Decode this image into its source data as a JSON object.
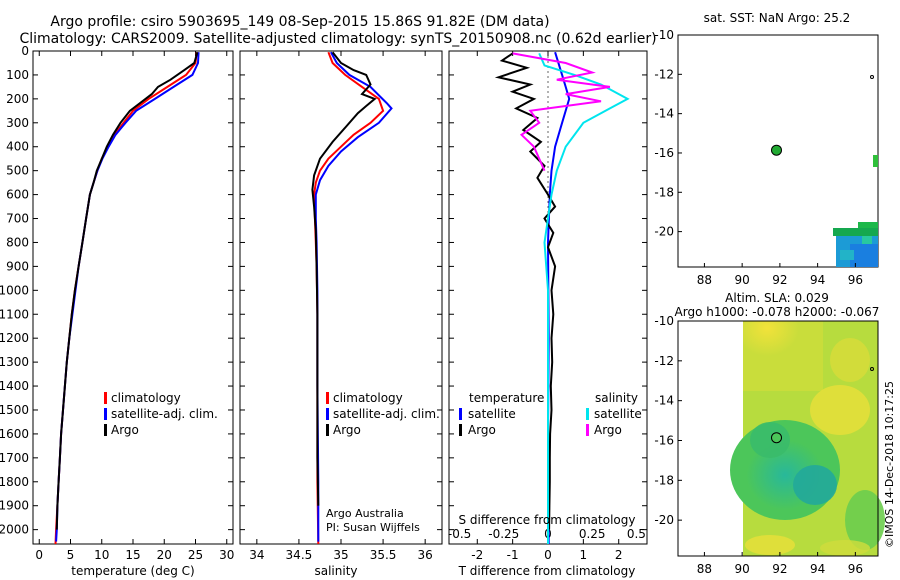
{
  "title": {
    "line1": "Argo profile: csiro 5903695_149 08-Sep-2015 15.86S 91.82E (DM data)",
    "line2": "Climatology: CARS2009. Satellite-adjusted climatology: synTS_20150908.nc (0.62d earlier)"
  },
  "colors": {
    "climatology": "#ff0000",
    "satellite": "#0000ff",
    "argo": "#000000",
    "sat_salinity": "#00e5ee",
    "argo_salinity_diff": "#ff00ff"
  },
  "chart_data": [
    {
      "type": "line",
      "name": "temperature",
      "xlabel": "temperature (deg C)",
      "ylabel": "",
      "xlim": [
        -1,
        31
      ],
      "ylim": [
        2060,
        0
      ],
      "xticks": [
        "0",
        "5",
        "10",
        "15",
        "20",
        "25",
        "30"
      ],
      "yticks": [
        "0",
        "100",
        "200",
        "300",
        "400",
        "500",
        "600",
        "700",
        "800",
        "900",
        "1000",
        "1100",
        "1200",
        "1300",
        "1400",
        "1500",
        "1600",
        "1700",
        "1800",
        "1900",
        "2000"
      ],
      "legend": {
        "position": "lower-right",
        "entries": [
          "climatology",
          "satellite-adj. clim.",
          "Argo"
        ]
      },
      "series": [
        {
          "name": "climatology",
          "color": "#ff0000",
          "points": [
            [
              25.2,
              5
            ],
            [
              25.0,
              50
            ],
            [
              23.5,
              100
            ],
            [
              20.5,
              150
            ],
            [
              17.5,
              200
            ],
            [
              15.0,
              250
            ],
            [
              13.5,
              300
            ],
            [
              12.0,
              350
            ],
            [
              11.0,
              400
            ],
            [
              10.0,
              450
            ],
            [
              9.3,
              500
            ],
            [
              8.7,
              550
            ],
            [
              8.1,
              600
            ],
            [
              7.5,
              700
            ],
            [
              6.9,
              800
            ],
            [
              6.3,
              900
            ],
            [
              5.7,
              1000
            ],
            [
              5.2,
              1100
            ],
            [
              4.8,
              1200
            ],
            [
              4.4,
              1300
            ],
            [
              4.1,
              1400
            ],
            [
              3.8,
              1500
            ],
            [
              3.5,
              1600
            ],
            [
              3.3,
              1700
            ],
            [
              3.1,
              1800
            ],
            [
              2.9,
              1900
            ],
            [
              2.7,
              2000
            ],
            [
              2.6,
              2060
            ]
          ]
        },
        {
          "name": "satellite-adj. clim.",
          "color": "#0000ff",
          "points": [
            [
              25.5,
              5
            ],
            [
              25.4,
              50
            ],
            [
              24.5,
              100
            ],
            [
              21.5,
              150
            ],
            [
              18.5,
              200
            ],
            [
              15.5,
              250
            ],
            [
              13.8,
              300
            ],
            [
              12.2,
              350
            ],
            [
              11.1,
              400
            ],
            [
              10.1,
              450
            ],
            [
              9.3,
              500
            ],
            [
              8.7,
              550
            ],
            [
              8.1,
              600
            ],
            [
              7.5,
              700
            ],
            [
              6.9,
              800
            ],
            [
              6.3,
              900
            ],
            [
              5.8,
              1000
            ],
            [
              5.3,
              1100
            ],
            [
              4.8,
              1200
            ],
            [
              4.4,
              1300
            ],
            [
              4.1,
              1400
            ],
            [
              3.8,
              1500
            ],
            [
              3.5,
              1600
            ],
            [
              3.3,
              1700
            ],
            [
              3.1,
              1800
            ],
            [
              2.9,
              1900
            ],
            [
              2.8,
              2000
            ],
            [
              2.7,
              2050
            ]
          ]
        },
        {
          "name": "Argo",
          "color": "#000000",
          "points": [
            [
              25.3,
              5
            ],
            [
              24.8,
              50
            ],
            [
              23.2,
              80
            ],
            [
              21.0,
              120
            ],
            [
              19.0,
              150
            ],
            [
              18.0,
              180
            ],
            [
              16.5,
              210
            ],
            [
              14.5,
              250
            ],
            [
              13.0,
              300
            ],
            [
              11.8,
              350
            ],
            [
              10.8,
              400
            ],
            [
              10.0,
              450
            ],
            [
              9.2,
              500
            ],
            [
              8.7,
              550
            ],
            [
              8.1,
              600
            ],
            [
              7.5,
              700
            ],
            [
              6.9,
              800
            ],
            [
              6.3,
              900
            ],
            [
              5.7,
              1000
            ],
            [
              5.2,
              1100
            ],
            [
              4.8,
              1200
            ],
            [
              4.4,
              1300
            ],
            [
              4.1,
              1400
            ],
            [
              3.8,
              1500
            ],
            [
              3.5,
              1600
            ],
            [
              3.3,
              1700
            ],
            [
              3.1,
              1800
            ],
            [
              2.9,
              1900
            ],
            [
              2.8,
              2000
            ]
          ]
        }
      ]
    },
    {
      "type": "line",
      "name": "salinity",
      "xlabel": "salinity",
      "xlim": [
        33.8,
        36.2
      ],
      "ylim": [
        2060,
        0
      ],
      "xticks": [
        "34",
        "34.5",
        "35",
        "35.5",
        "36"
      ],
      "legend": {
        "position": "lower-right",
        "entries": [
          "climatology",
          "satellite-adj. clim.",
          "Argo"
        ]
      },
      "series": [
        {
          "name": "climatology",
          "color": "#ff0000",
          "points": [
            [
              34.85,
              5
            ],
            [
              34.9,
              50
            ],
            [
              35.05,
              100
            ],
            [
              35.25,
              150
            ],
            [
              35.45,
              200
            ],
            [
              35.5,
              250
            ],
            [
              35.35,
              300
            ],
            [
              35.15,
              350
            ],
            [
              35.0,
              400
            ],
            [
              34.85,
              450
            ],
            [
              34.75,
              500
            ],
            [
              34.7,
              550
            ],
            [
              34.68,
              600
            ],
            [
              34.69,
              700
            ],
            [
              34.7,
              800
            ],
            [
              34.71,
              900
            ],
            [
              34.72,
              1100
            ],
            [
              34.72,
              1400
            ],
            [
              34.72,
              1800
            ],
            [
              34.73,
              2060
            ]
          ]
        },
        {
          "name": "satellite-adj. clim.",
          "color": "#0000ff",
          "points": [
            [
              34.88,
              5
            ],
            [
              34.95,
              50
            ],
            [
              35.1,
              100
            ],
            [
              35.35,
              150
            ],
            [
              35.55,
              220
            ],
            [
              35.6,
              240
            ],
            [
              35.45,
              300
            ],
            [
              35.2,
              360
            ],
            [
              35.0,
              420
            ],
            [
              34.85,
              480
            ],
            [
              34.75,
              540
            ],
            [
              34.7,
              600
            ],
            [
              34.7,
              700
            ],
            [
              34.71,
              800
            ],
            [
              34.72,
              1000
            ],
            [
              34.72,
              1400
            ],
            [
              34.73,
              1800
            ],
            [
              34.73,
              2050
            ]
          ]
        },
        {
          "name": "Argo",
          "color": "#000000",
          "points": [
            [
              34.9,
              5
            ],
            [
              35.0,
              50
            ],
            [
              35.15,
              80
            ],
            [
              35.3,
              100
            ],
            [
              35.35,
              140
            ],
            [
              35.25,
              180
            ],
            [
              35.4,
              200
            ],
            [
              35.3,
              230
            ],
            [
              35.2,
              260
            ],
            [
              35.05,
              320
            ],
            [
              34.9,
              380
            ],
            [
              34.75,
              450
            ],
            [
              34.68,
              520
            ],
            [
              34.66,
              580
            ],
            [
              34.68,
              650
            ],
            [
              34.7,
              750
            ],
            [
              34.71,
              900
            ],
            [
              34.72,
              1100
            ],
            [
              34.72,
              1400
            ],
            [
              34.72,
              1700
            ],
            [
              34.73,
              1900
            ]
          ]
        }
      ],
      "annotation": [
        "Argo Australia",
        "PI: Susan Wijffels"
      ]
    },
    {
      "type": "line",
      "name": "differences",
      "xlabel": "T difference from climatology",
      "xlabel_top": "S difference from climatology",
      "xlim": [
        -2.8,
        2.8
      ],
      "ylim": [
        2060,
        0
      ],
      "xticks": [
        "-2",
        "-1",
        "0",
        "1",
        "2"
      ],
      "xticks_top": [
        "-0.5",
        "-0.25",
        "0",
        "0.25",
        "0.5"
      ],
      "legend": {
        "position": "lower",
        "temperature_title": "temperature",
        "salinity_title": "salinity",
        "entries_left": [
          "satellite",
          "Argo"
        ],
        "entries_right": [
          "satellite",
          "Argo"
        ]
      },
      "series": [
        {
          "name": "T satellite",
          "color": "#0000ff",
          "points": [
            [
              0.2,
              5
            ],
            [
              0.4,
              100
            ],
            [
              0.5,
              150
            ],
            [
              0.6,
              200
            ],
            [
              0.4,
              300
            ],
            [
              0.2,
              400
            ],
            [
              0.1,
              500
            ],
            [
              0.05,
              600
            ],
            [
              0.0,
              800
            ],
            [
              0.02,
              1200
            ],
            [
              0.0,
              1600
            ],
            [
              0.02,
              2060
            ]
          ]
        },
        {
          "name": "T Argo",
          "color": "#000000",
          "points": [
            [
              -1.0,
              10
            ],
            [
              -1.3,
              40
            ],
            [
              -0.6,
              70
            ],
            [
              -1.4,
              110
            ],
            [
              -0.5,
              140
            ],
            [
              -1.0,
              170
            ],
            [
              -0.4,
              200
            ],
            [
              -0.9,
              240
            ],
            [
              -0.3,
              280
            ],
            [
              -0.7,
              330
            ],
            [
              -0.2,
              380
            ],
            [
              -0.5,
              420
            ],
            [
              -0.1,
              480
            ],
            [
              -0.3,
              530
            ],
            [
              0.0,
              600
            ],
            [
              0.2,
              650
            ],
            [
              -0.1,
              700
            ],
            [
              0.15,
              760
            ],
            [
              0.0,
              820
            ],
            [
              0.2,
              900
            ],
            [
              0.1,
              1000
            ],
            [
              0.15,
              1100
            ],
            [
              0.1,
              1200
            ],
            [
              0.12,
              1300
            ],
            [
              0.08,
              1400
            ],
            [
              0.1,
              1500
            ],
            [
              0.06,
              1600
            ],
            [
              0.05,
              1700
            ],
            [
              0.05,
              1800
            ],
            [
              0.04,
              1900
            ],
            [
              0.03,
              2000
            ]
          ]
        },
        {
          "name": "S satellite",
          "color": "#00e5ee",
          "points": [
            [
              -0.05,
              10
            ],
            [
              -0.02,
              60
            ],
            [
              0.15,
              100
            ],
            [
              0.3,
              140
            ],
            [
              0.45,
              200
            ],
            [
              0.35,
              240
            ],
            [
              0.2,
              300
            ],
            [
              0.1,
              400
            ],
            [
              0.05,
              500
            ],
            [
              0.02,
              600
            ],
            [
              0.0,
              700
            ],
            [
              -0.02,
              800
            ],
            [
              0.0,
              1000
            ],
            [
              0.0,
              1200
            ],
            [
              0.0,
              1500
            ],
            [
              0.0,
              1800
            ],
            [
              0.0,
              2060
            ]
          ]
        },
        {
          "name": "S Argo",
          "color": "#ff00ff",
          "points": [
            [
              -0.2,
              10
            ],
            [
              0.1,
              50
            ],
            [
              0.25,
              90
            ],
            [
              0.05,
              120
            ],
            [
              0.35,
              150
            ],
            [
              0.1,
              180
            ],
            [
              0.3,
              210
            ],
            [
              -0.1,
              250
            ],
            [
              -0.05,
              300
            ],
            [
              -0.15,
              350
            ],
            [
              -0.08,
              400
            ],
            [
              -0.05,
              450
            ],
            [
              -0.02,
              500
            ]
          ]
        }
      ]
    }
  ],
  "maps": [
    {
      "title": "sat. SST: NaN Argo: 25.2",
      "xticks": [
        "88",
        "90",
        "92",
        "94",
        "96"
      ],
      "yticks": [
        "-10",
        "-12",
        "-14",
        "-16",
        "-18",
        "-20"
      ],
      "xlim": [
        86.6,
        97.2
      ],
      "ylim": [
        -21.8,
        -10
      ],
      "argo_position": [
        91.82,
        -15.86
      ]
    },
    {
      "title_line1": "Altim. SLA: 0.029",
      "title_line2": "Argo h1000: -0.078 h2000: -0.067",
      "xticks": [
        "88",
        "90",
        "92",
        "94",
        "96"
      ],
      "yticks": [
        "-10",
        "-12",
        "-14",
        "-16",
        "-18",
        "-20"
      ],
      "xlim": [
        86.6,
        97.2
      ],
      "ylim": [
        -21.8,
        -10
      ],
      "argo_position": [
        91.82,
        -15.86
      ]
    }
  ],
  "side_label": "©IMOS 14-Dec-2018 10:17:25"
}
